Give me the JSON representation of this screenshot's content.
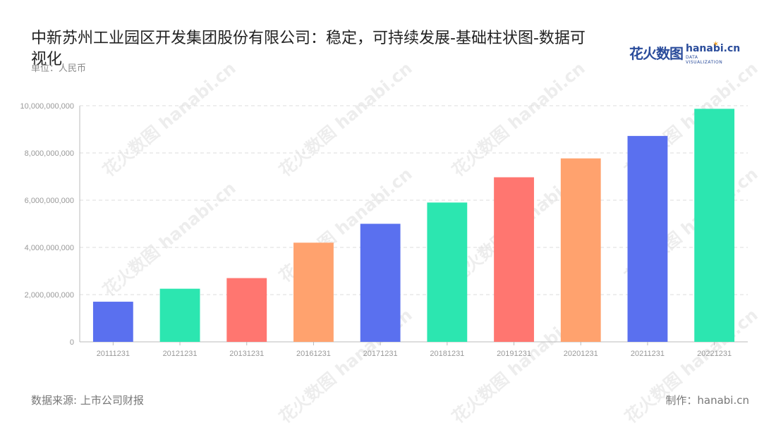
{
  "title": "中新苏州工业园区开发集团股份有限公司：稳定，可持续发展-基础柱状图-数据可视化",
  "unit_label": "单位：人民币",
  "logo": {
    "cn": "花火数图",
    "en": "hanabi.cn",
    "sub": "DATA VISUALIZATION",
    "icon": "sparkle-icon"
  },
  "source": "数据来源: 上市公司财报",
  "credit": "制作：hanabi.cn",
  "watermark": "花火数图 hanabi.cn",
  "colors": {
    "blue": "#5a70ef",
    "green": "#2ce6b0",
    "red": "#ff7670",
    "orange": "#ffa26e",
    "axis": "#999999",
    "grid": "#dddddd"
  },
  "chart_data": {
    "type": "bar",
    "categories": [
      "20111231",
      "20121231",
      "20131231",
      "20161231",
      "20171231",
      "20181231",
      "20191231",
      "20201231",
      "20211231",
      "20221231"
    ],
    "values": [
      1700000000,
      2250000000,
      2700000000,
      4200000000,
      5000000000,
      5900000000,
      6970000000,
      7770000000,
      8720000000,
      9870000000
    ],
    "bar_colors": [
      "#5a70ef",
      "#2ce6b0",
      "#ff7670",
      "#ffa26e",
      "#5a70ef",
      "#2ce6b0",
      "#ff7670",
      "#ffa26e",
      "#5a70ef",
      "#2ce6b0"
    ],
    "yticks": [
      "0",
      "2,000,000,000",
      "4,000,000,000",
      "6,000,000,000",
      "8,000,000,000",
      "10,000,000,000"
    ],
    "ylim": [
      0,
      10000000000
    ],
    "grid": true
  }
}
